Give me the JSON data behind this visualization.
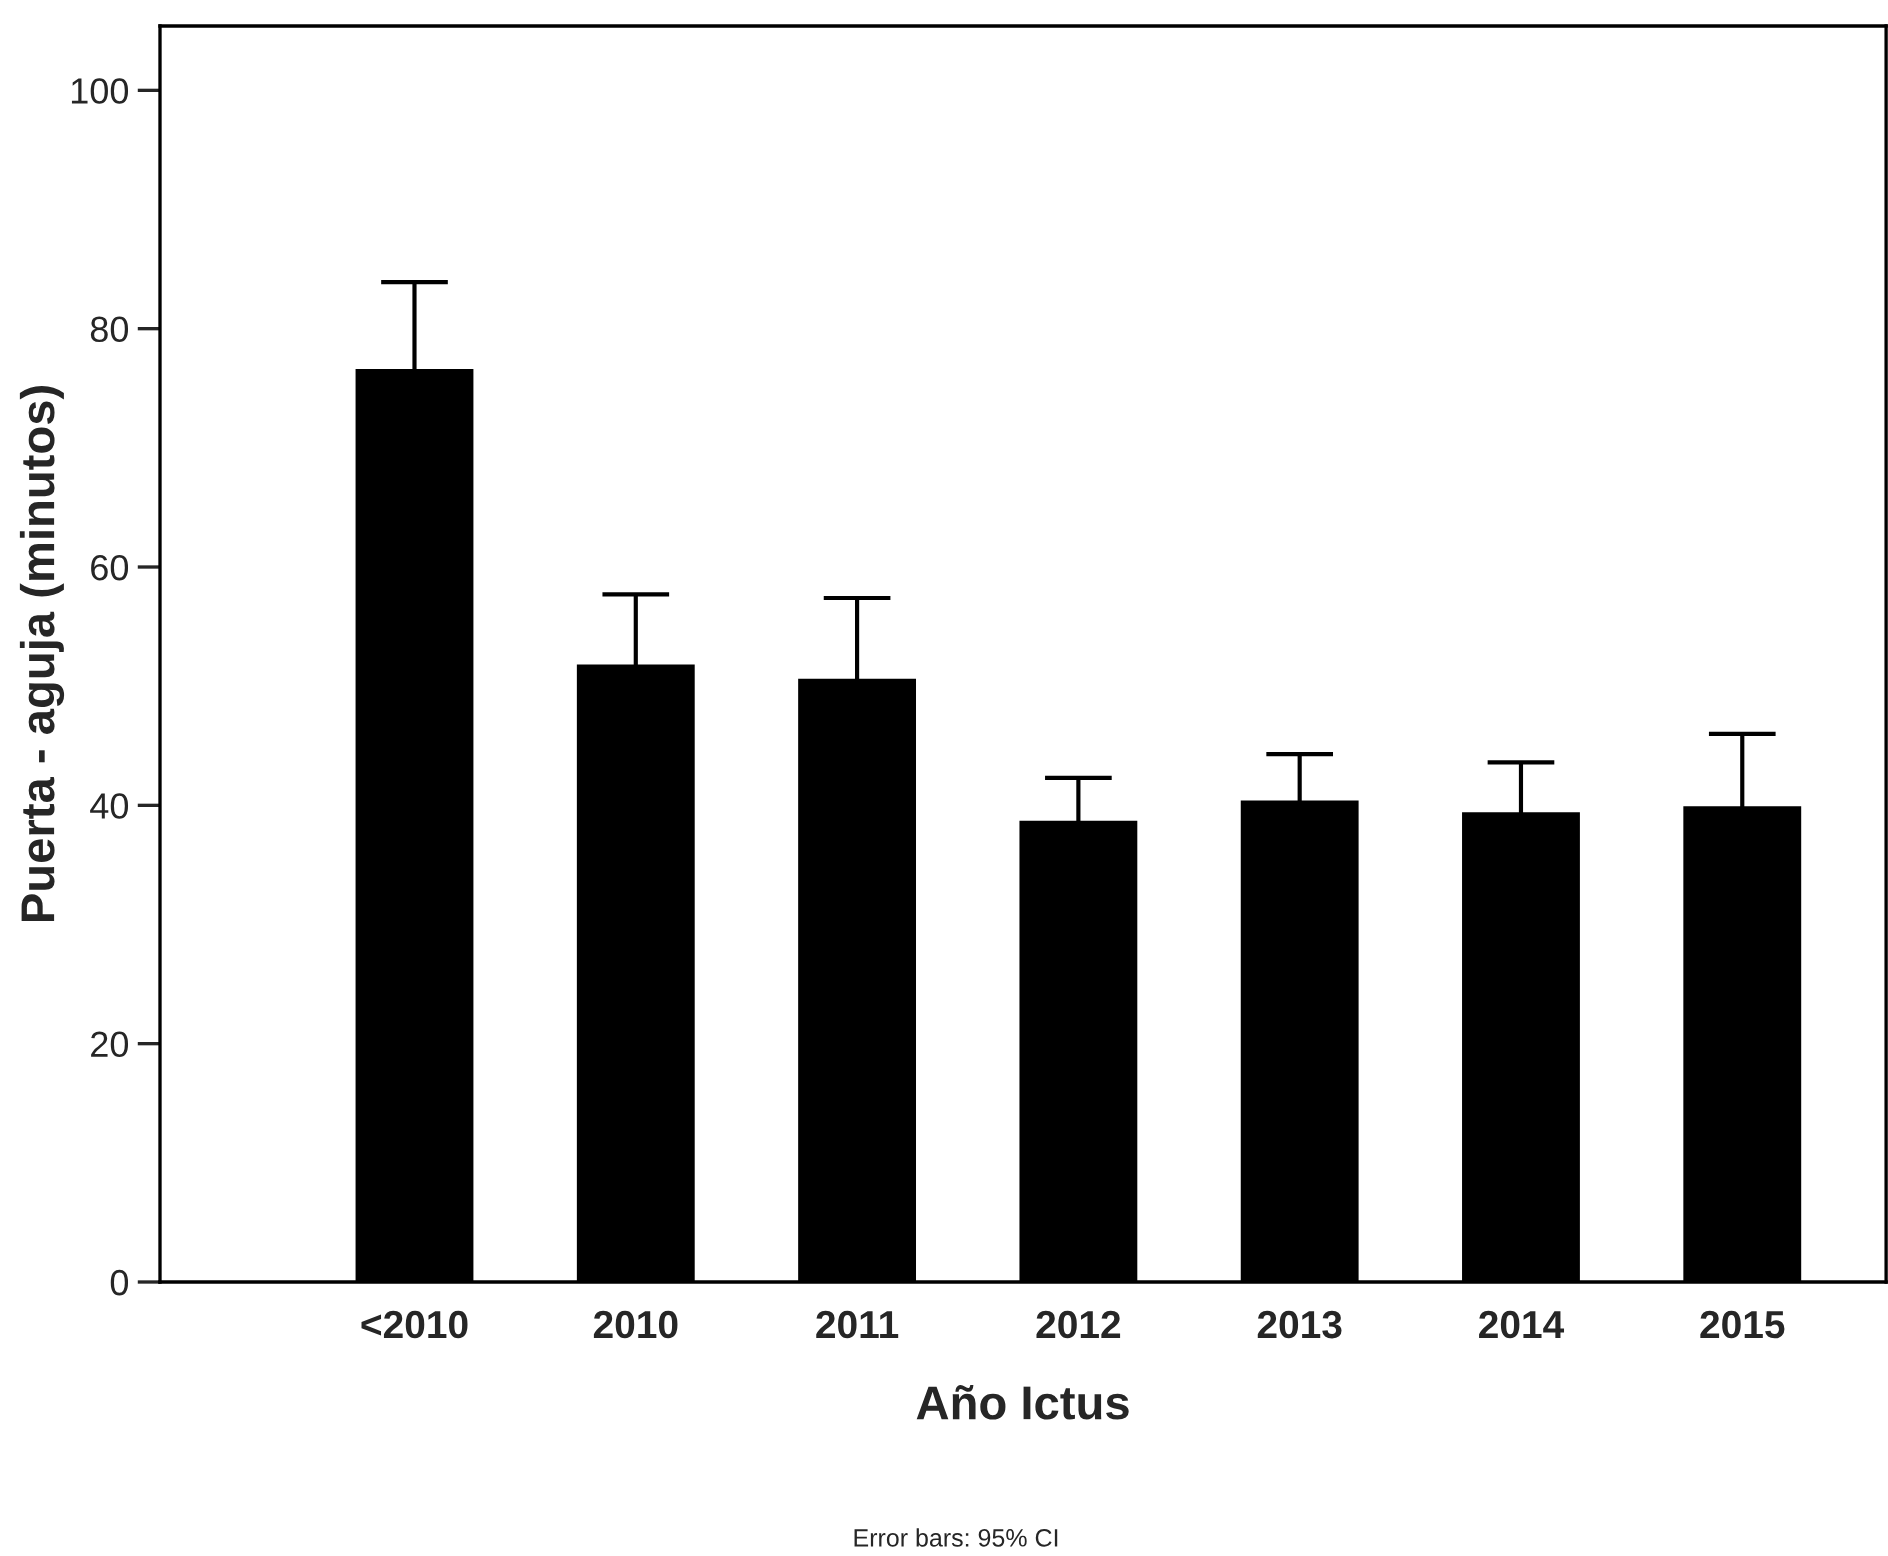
{
  "chart_data": {
    "type": "bar",
    "xlabel": "Año Ictus",
    "ylabel": "Puerta - aguja (minutos)",
    "categories": [
      "<2010",
      "2010",
      "2011",
      "2012",
      "2013",
      "2014",
      "2015"
    ],
    "values": [
      76.5,
      51.7,
      50.5,
      38.6,
      40.3,
      39.3,
      39.8
    ],
    "errors": [
      7.4,
      6.0,
      6.9,
      3.7,
      4.0,
      4.3,
      6.2
    ],
    "color": "#000000",
    "ylim": [
      0,
      105.4
    ],
    "yticks": [
      0,
      20,
      40,
      60,
      80,
      100
    ],
    "grid": false,
    "legend": false,
    "annotations": [
      "Error bars: 95% CI"
    ]
  }
}
